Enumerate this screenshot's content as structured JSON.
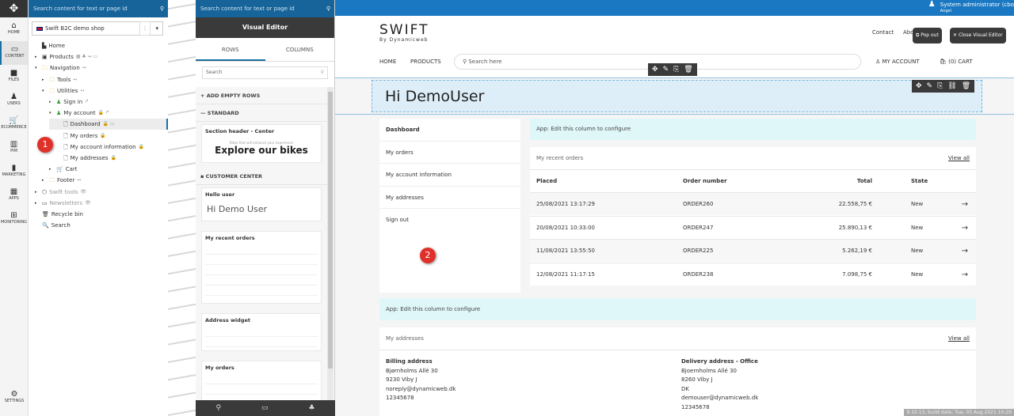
{
  "rail": [
    {
      "label": "HOME",
      "icon": "home-icon",
      "glyph": "⌂"
    },
    {
      "label": "CONTENT",
      "icon": "monitor-icon",
      "glyph": "▭",
      "active": true
    },
    {
      "label": "FILES",
      "icon": "briefcase-icon",
      "glyph": "■"
    },
    {
      "label": "USERS",
      "icon": "user-icon",
      "glyph": "♟"
    },
    {
      "label": "ECOMMERCE",
      "icon": "cart-icon",
      "glyph": "🛒"
    },
    {
      "label": "PIM",
      "icon": "pim-icon",
      "glyph": "▥"
    },
    {
      "label": "MARKETING",
      "icon": "bar-chart-icon",
      "glyph": "▮"
    },
    {
      "label": "APPS",
      "icon": "grid-icon",
      "glyph": "▦"
    },
    {
      "label": "MONITORING",
      "icon": "monitoring-icon",
      "glyph": "⊞"
    }
  ],
  "settings_label": "SETTINGS",
  "search_placeholder": "Search content for text or page id",
  "shop_select": "Swift B2C demo shop",
  "tree": [
    {
      "label": "Home",
      "depth": 0,
      "arrow": "",
      "icon": "▙",
      "meta": ""
    },
    {
      "label": "Products",
      "depth": 0,
      "arrow": "▸",
      "icon": "▣",
      "meta": "▦ ♣ ↔ ▭"
    },
    {
      "label": "Navigation",
      "depth": 0,
      "arrow": "▾",
      "icon": "🗀",
      "meta": "↔"
    },
    {
      "label": "Tools",
      "depth": 1,
      "arrow": "▸",
      "icon": "🗀",
      "meta": "↔"
    },
    {
      "label": "Utilities",
      "depth": 1,
      "arrow": "▾",
      "icon": "🗀",
      "meta": "↔"
    },
    {
      "label": "Sign in",
      "depth": 2,
      "arrow": "▸",
      "icon": "♟",
      "meta": "↱"
    },
    {
      "label": "My account",
      "depth": 2,
      "arrow": "▾",
      "icon": "♟",
      "meta": "🔒 ↱"
    },
    {
      "label": "Dashboard",
      "depth": 3,
      "arrow": "",
      "icon": "🗋",
      "meta": "🔒 ▭",
      "selected": true
    },
    {
      "label": "My orders",
      "depth": 3,
      "arrow": "",
      "icon": "🗋",
      "meta": "🔒"
    },
    {
      "label": "My account information",
      "depth": 3,
      "arrow": "",
      "icon": "🗋",
      "meta": "🔒"
    },
    {
      "label": "My addresses",
      "depth": 3,
      "arrow": "",
      "icon": "🗋",
      "meta": "🔒"
    },
    {
      "label": "Cart",
      "depth": 2,
      "arrow": "▸",
      "icon": "🛒",
      "meta": ""
    },
    {
      "label": "Footer",
      "depth": 1,
      "arrow": "▸",
      "icon": "🗀",
      "meta": "↔"
    },
    {
      "label": "Swift tools",
      "depth": 0,
      "arrow": "▸",
      "icon": "⬡",
      "meta": "👁",
      "muted": true
    },
    {
      "label": "Newsletters",
      "depth": 0,
      "arrow": "▸",
      "icon": "▭",
      "meta": "👁",
      "muted": true
    },
    {
      "label": "Recycle bin",
      "depth": 0,
      "arrow": "",
      "icon": "🗑",
      "meta": ""
    },
    {
      "label": "Search",
      "depth": 0,
      "arrow": "",
      "icon": "🔍",
      "meta": ""
    }
  ],
  "badges": [
    "1",
    "2"
  ],
  "ve": {
    "title": "Visual Editor",
    "tabs": [
      "ROWS",
      "COLUMNS"
    ],
    "search_placeholder": "Search",
    "add_empty": "ADD EMPTY ROWS",
    "standard": "STANDARD",
    "customer_center": "CUSTOMER CENTER",
    "cards": {
      "section_header": "Section header - Center",
      "section_sub": "Bikes that will enhance your experience",
      "section_big": "Explore our bikes",
      "hello_user": "Hello user",
      "hello_big": "Hi Demo User",
      "recent_orders": "My recent orders",
      "address_widget": "Address widget",
      "my_orders": "My orders"
    }
  },
  "user": {
    "name": "System administrator (cbo",
    "sub": "Angel"
  },
  "site": {
    "logo": "SWIFT",
    "logo_sub": "By Dynamicweb",
    "contact": "Contact",
    "about": "Abo",
    "nav": [
      "HOME",
      "PRODUCTS"
    ],
    "search_placeholder": "Search here",
    "my_account": "MY ACCOUNT",
    "cart": "(0) CART",
    "pop_out": "Pop out",
    "close_ve": "Close Visual Editor",
    "greeting": "Hi DemoUser",
    "sidebar": [
      "Dashboard",
      "My orders",
      "My account information",
      "My addresses",
      "Sign out"
    ],
    "app_edit": "App: Edit this column to configure",
    "recent": {
      "title": "My recent orders",
      "view_all": "View all",
      "headers": [
        "Placed",
        "Order number",
        "Total",
        "State"
      ],
      "rows": [
        [
          "25/08/2021 13:17:29",
          "ORDER260",
          "22.558,75 €",
          "New"
        ],
        [
          "20/08/2021 10:33:00",
          "ORDER247",
          "25.890,13 €",
          "New"
        ],
        [
          "11/08/2021 13:55:50",
          "ORDER225",
          "5.262,19 €",
          "New"
        ],
        [
          "12/08/2021 11:17:15",
          "ORDER238",
          "7.098,75 €",
          "New"
        ]
      ]
    },
    "addresses": {
      "title": "My addresses",
      "view_all": "View all",
      "billing": {
        "title": "Billing address",
        "lines": [
          "Bjørnholms Allé 30",
          "9230 Viby J",
          "noreply@dynamicweb.dk",
          "12345678"
        ]
      },
      "delivery": {
        "title": "Delivery address - Office",
        "lines": [
          "Bjoernholms Allé 30",
          "8260 Viby J",
          "DK",
          "demouser@dynamicweb.dk",
          "12345678"
        ]
      }
    }
  },
  "build": "9.10.13, build date: Tue, 03 Aug 2021 10:20",
  "colors": {
    "accent": "#1a78c2",
    "dark": "#3a3a3a",
    "badge": "#e0302a",
    "app_bar": "#e0f7fa",
    "greeting_band": "#ddeef8"
  }
}
